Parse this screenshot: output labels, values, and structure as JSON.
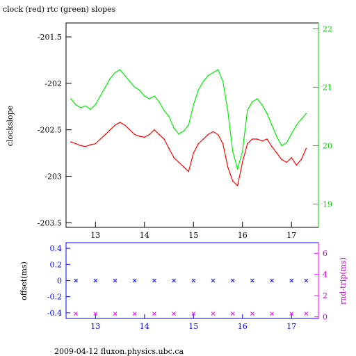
{
  "chart_data": [
    {
      "type": "line",
      "title": "clock (red) rtc (green) slopes",
      "ylabel": "clockslope",
      "ylim": [
        -203.55,
        -201.35
      ],
      "y_ticks": [
        -201.5,
        -202,
        -202.5,
        -203,
        -203.5
      ],
      "y_tick_labels": [
        "-201.5",
        "-202",
        "-202.5",
        "-203",
        "-203.5"
      ],
      "y2lim": [
        18.6,
        22.1
      ],
      "y2_ticks": [
        19,
        20,
        21,
        22
      ],
      "y2_tick_labels": [
        "19",
        "20",
        "21",
        "22"
      ],
      "xlim": [
        12.4,
        17.55
      ],
      "x_ticks": [
        13,
        14,
        15,
        16,
        17
      ],
      "x_tick_labels": [
        "13",
        "14",
        "15",
        "16",
        "17"
      ],
      "series": [
        {
          "axis": "left",
          "color": "#ff0000",
          "x": [
            12.5,
            12.6,
            12.7,
            12.8,
            12.9,
            13.0,
            13.1,
            13.2,
            13.3,
            13.4,
            13.5,
            13.6,
            13.7,
            13.8,
            13.9,
            14.0,
            14.1,
            14.2,
            14.3,
            14.4,
            14.5,
            14.6,
            14.7,
            14.8,
            14.9,
            15.0,
            15.1,
            15.2,
            15.3,
            15.4,
            15.5,
            15.6,
            15.7,
            15.8,
            15.9,
            16.0,
            16.1,
            16.2,
            16.3,
            16.4,
            16.5,
            16.6,
            16.7,
            16.8,
            16.9,
            17.0,
            17.1,
            17.2,
            17.3
          ],
          "y": [
            -202.63,
            -202.65,
            -202.67,
            -202.68,
            -202.66,
            -202.65,
            -202.6,
            -202.55,
            -202.5,
            -202.45,
            -202.42,
            -202.45,
            -202.5,
            -202.55,
            -202.57,
            -202.58,
            -202.55,
            -202.5,
            -202.55,
            -202.6,
            -202.7,
            -202.8,
            -202.85,
            -202.9,
            -202.95,
            -202.75,
            -202.65,
            -202.6,
            -202.55,
            -202.52,
            -202.55,
            -202.65,
            -202.9,
            -203.05,
            -203.1,
            -202.85,
            -202.65,
            -202.6,
            -202.6,
            -202.62,
            -202.6,
            -202.68,
            -202.75,
            -202.82,
            -202.85,
            -202.8,
            -202.88,
            -202.82,
            -202.7
          ]
        },
        {
          "axis": "right",
          "color": "#00ee00",
          "x": [
            12.5,
            12.6,
            12.7,
            12.8,
            12.9,
            13.0,
            13.1,
            13.2,
            13.3,
            13.4,
            13.5,
            13.6,
            13.7,
            13.8,
            13.9,
            14.0,
            14.1,
            14.2,
            14.3,
            14.4,
            14.5,
            14.6,
            14.7,
            14.8,
            14.9,
            15.0,
            15.1,
            15.2,
            15.3,
            15.4,
            15.5,
            15.6,
            15.7,
            15.8,
            15.9,
            16.0,
            16.1,
            16.2,
            16.3,
            16.4,
            16.5,
            16.6,
            16.7,
            16.8,
            16.9,
            17.0,
            17.1,
            17.2,
            17.3
          ],
          "y": [
            20.8,
            20.7,
            20.65,
            20.68,
            20.62,
            20.7,
            20.85,
            21.0,
            21.15,
            21.25,
            21.3,
            21.2,
            21.1,
            21.0,
            20.95,
            20.85,
            20.8,
            20.85,
            20.75,
            20.6,
            20.5,
            20.3,
            20.2,
            20.25,
            20.35,
            20.7,
            20.95,
            21.1,
            21.2,
            21.25,
            21.3,
            21.1,
            20.6,
            19.9,
            19.6,
            19.9,
            20.6,
            20.75,
            20.8,
            20.7,
            20.55,
            20.35,
            20.15,
            20.0,
            20.05,
            20.2,
            20.35,
            20.45,
            20.55
          ]
        }
      ]
    },
    {
      "type": "scatter",
      "ylabel": "offset(ms)",
      "y2label": "rnd-trip(ms)",
      "ylim": [
        -0.47,
        0.47
      ],
      "y_ticks": [
        0.4,
        0.2,
        0,
        -0.2,
        -0.4
      ],
      "y_tick_labels": [
        "0.4",
        "0.2",
        "0",
        "-0.2",
        "-0.4"
      ],
      "y2lim": [
        -0.15,
        7.0
      ],
      "y2_ticks": [
        0,
        2,
        4,
        6
      ],
      "y2_tick_labels": [
        "0",
        "2",
        "4",
        "6"
      ],
      "xlim": [
        12.4,
        17.55
      ],
      "x_ticks": [
        13,
        14,
        15,
        16,
        17
      ],
      "x_tick_labels": [
        "13",
        "14",
        "15",
        "16",
        "17"
      ],
      "series": [
        {
          "axis": "left",
          "marker": "x",
          "color": "#0000ff",
          "x": [
            12.6,
            13.0,
            13.4,
            13.8,
            14.2,
            14.6,
            15.0,
            15.4,
            15.8,
            16.2,
            16.6,
            17.0,
            17.3
          ],
          "y": [
            0.0,
            0.0,
            0.0,
            0.0,
            0.0,
            0.0,
            0.0,
            0.0,
            0.0,
            0.0,
            0.0,
            0.0,
            0.0
          ]
        },
        {
          "axis": "right",
          "marker": "x",
          "color": "#ff00ff",
          "x": [
            12.6,
            13.0,
            13.4,
            13.8,
            14.2,
            14.6,
            15.0,
            15.4,
            15.8,
            16.2,
            16.6,
            17.0,
            17.3
          ],
          "y": [
            0.3,
            0.3,
            0.3,
            0.3,
            0.3,
            0.3,
            0.3,
            0.3,
            0.3,
            0.3,
            0.3,
            0.3,
            0.3
          ]
        }
      ]
    }
  ],
  "footer": "2009-04-12 fluxon.physics.ubc.ca"
}
